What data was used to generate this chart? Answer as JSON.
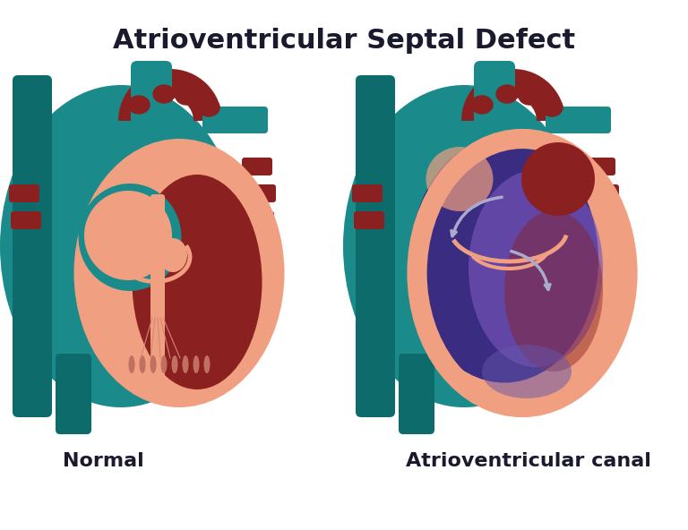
{
  "title": "Atrioventricular Septal Defect",
  "title_fontsize": 22,
  "title_color": "#1a1a2e",
  "title_fontweight": "bold",
  "label_left": "Normal",
  "label_right": "Atrioventricular canal",
  "label_fontsize": 16,
  "label_fontweight": "bold",
  "label_color": "#1a1a2e",
  "bg_color": "#ffffff",
  "teal": "#1a8a8a",
  "teal_dark": "#0d6b6b",
  "salmon": "#f0a080",
  "dark_red": "#8b2020",
  "purple_blue": "#4444aa",
  "arrow_color": "#9988cc",
  "figsize": [
    7.68,
    5.92
  ],
  "dpi": 100
}
